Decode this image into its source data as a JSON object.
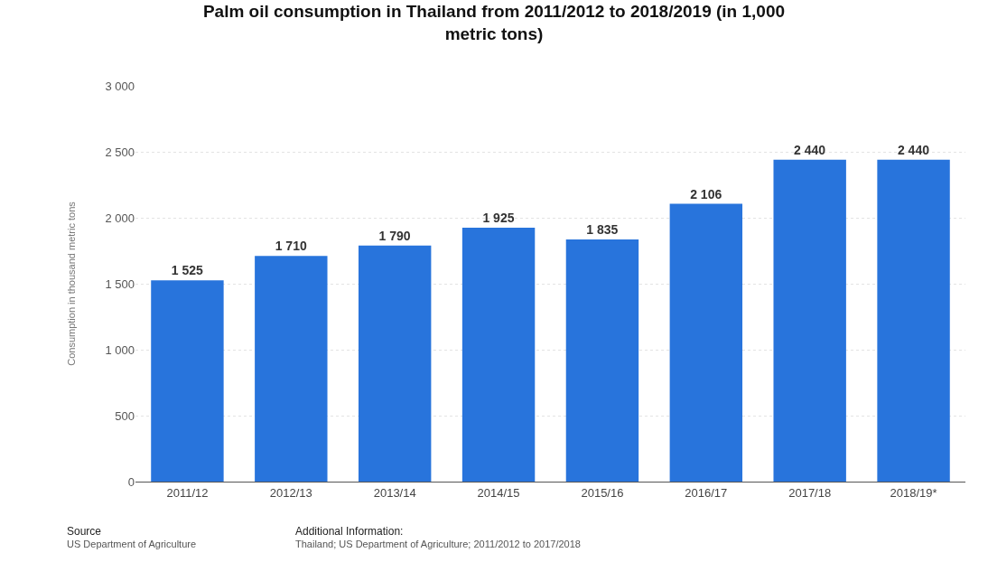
{
  "chart_data": {
    "type": "bar",
    "title": "Palm oil consumption in Thailand from 2011/2012 to 2018/2019 (in 1,000 metric tons)",
    "ylabel": "Consumption in thousand metric tons",
    "categories": [
      "2011/12",
      "2012/13",
      "2013/14",
      "2014/15",
      "2015/16",
      "2016/17",
      "2017/18",
      "2018/19*"
    ],
    "values": [
      1525,
      1710,
      1790,
      1925,
      1835,
      2106,
      2440,
      2440
    ],
    "value_labels": [
      "1 525",
      "1 710",
      "1 790",
      "1 925",
      "1 835",
      "2 106",
      "2 440",
      "2 440"
    ],
    "color": "#2874dc",
    "ylim": [
      0,
      3000
    ],
    "yticks": [
      0,
      500,
      {
        "value": 1000,
        "label": "1 000"
      },
      {
        "value": 1500,
        "label": "1 500"
      },
      {
        "value": 2000,
        "label": "2 000"
      },
      {
        "value": 2500,
        "label": "2 500"
      },
      {
        "value": 3000,
        "label": "3 000"
      }
    ],
    "grid": "y",
    "annotations": [
      "Source",
      "US Department of Agriculture",
      "Additional Information:",
      "Thailand; US Department of Agriculture; 2011/2012 to 2017/2018"
    ]
  }
}
